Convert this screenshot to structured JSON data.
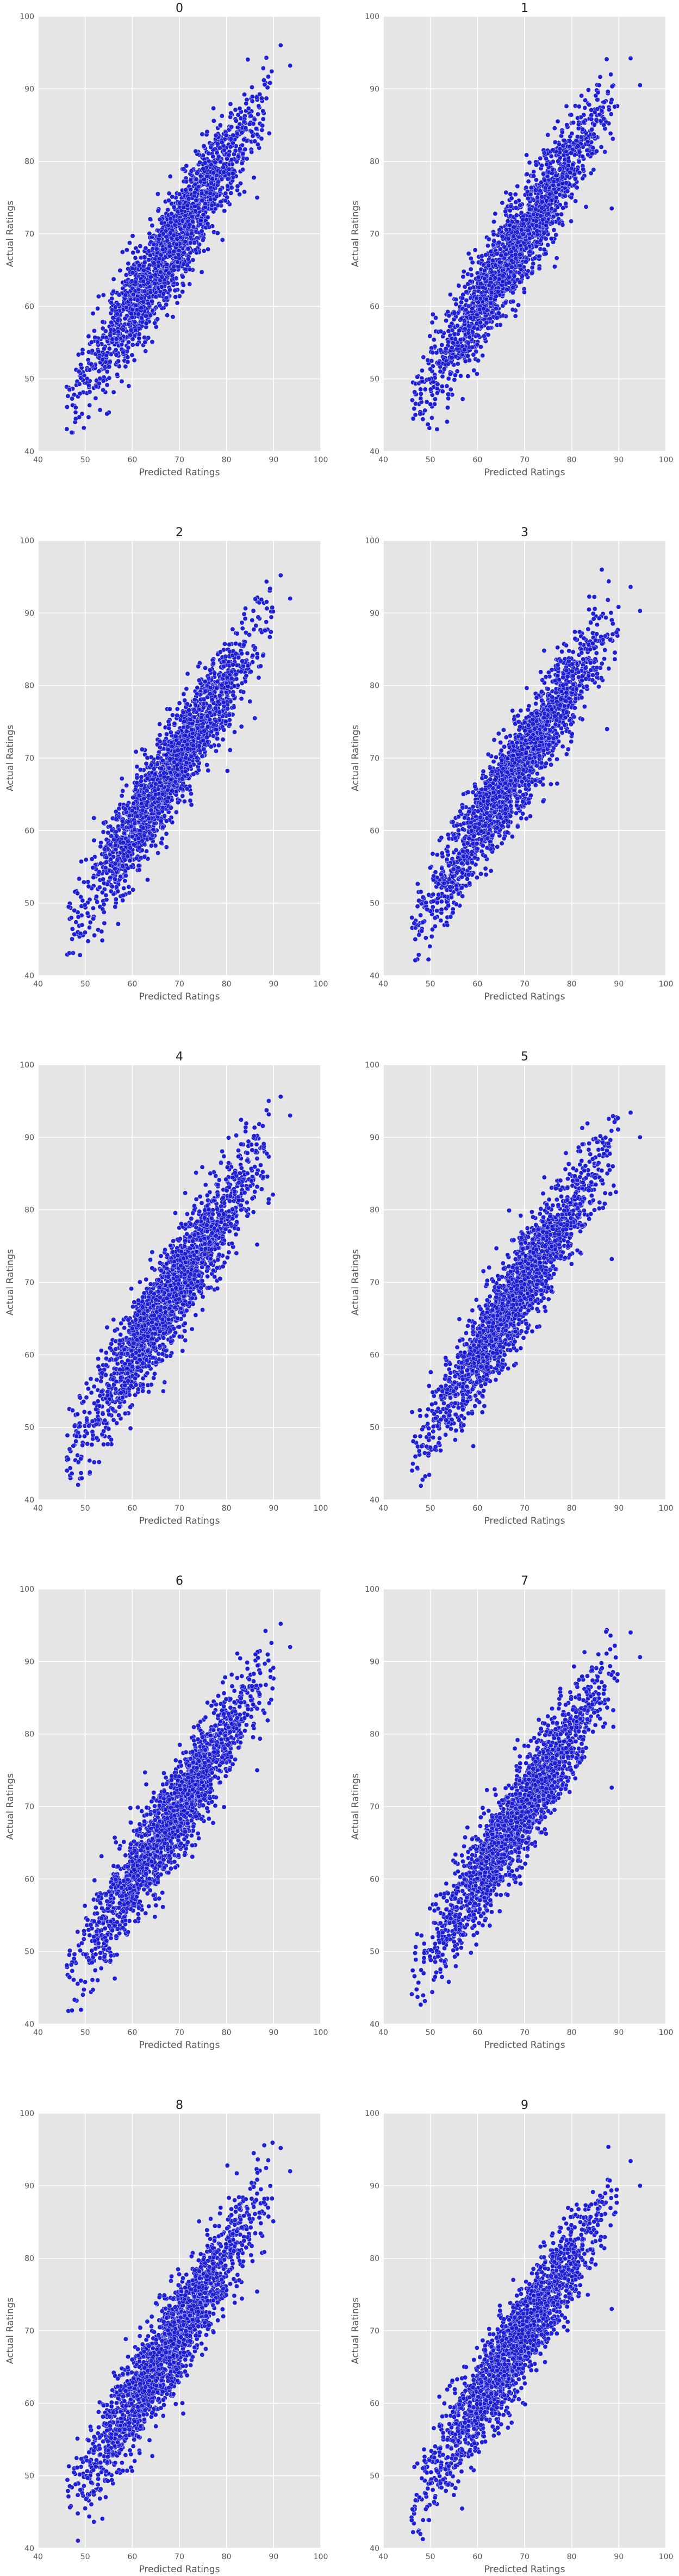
{
  "chart_data": [
    {
      "type": "scatter",
      "title": "0",
      "xlabel": "Predicted Ratings",
      "ylabel": "Actual Ratings",
      "xlim": [
        40,
        100
      ],
      "ylim": [
        40,
        100
      ],
      "xticks": [
        "40",
        "50",
        "60",
        "70",
        "80",
        "90",
        "100"
      ],
      "yticks": [
        "40",
        "50",
        "60",
        "70",
        "80",
        "90",
        "100"
      ],
      "grid": true,
      "color": "#1f1fd6",
      "seed": 11,
      "n_points": 2000,
      "slope": 1.0,
      "intercept": 0,
      "noise_sd": 3.4,
      "x_range": [
        46,
        90
      ],
      "extra_points": [
        [
          91.5,
          96.0
        ],
        [
          93.5,
          93.2
        ],
        [
          86.5,
          75.0
        ],
        [
          48,
          44.5
        ]
      ]
    },
    {
      "type": "scatter",
      "title": "1",
      "xlabel": "Predicted Ratings",
      "ylabel": "Actual Ratings",
      "xlim": [
        40,
        100
      ],
      "ylim": [
        40,
        100
      ],
      "xticks": [
        "40",
        "50",
        "60",
        "70",
        "80",
        "90",
        "100"
      ],
      "yticks": [
        "40",
        "50",
        "60",
        "70",
        "80",
        "90",
        "100"
      ],
      "grid": true,
      "color": "#1f1fd6",
      "seed": 23,
      "n_points": 2000,
      "slope": 1.0,
      "intercept": 0,
      "noise_sd": 3.2,
      "x_range": [
        46,
        90
      ],
      "extra_points": [
        [
          92.5,
          94.2
        ],
        [
          94.5,
          90.5
        ],
        [
          88.5,
          73.5
        ],
        [
          50,
          46.5
        ]
      ]
    },
    {
      "type": "scatter",
      "title": "2",
      "xlabel": "Predicted Ratings",
      "ylabel": "Actual Ratings",
      "xlim": [
        40,
        100
      ],
      "ylim": [
        40,
        100
      ],
      "xticks": [
        "40",
        "50",
        "60",
        "70",
        "80",
        "90",
        "100"
      ],
      "yticks": [
        "40",
        "50",
        "60",
        "70",
        "80",
        "90",
        "100"
      ],
      "grid": true,
      "color": "#1f1fd6",
      "seed": 37,
      "n_points": 2000,
      "slope": 1.0,
      "intercept": 0,
      "noise_sd": 3.3,
      "x_range": [
        46,
        90
      ],
      "extra_points": [
        [
          91.5,
          95.2
        ],
        [
          93.5,
          92.0
        ],
        [
          86,
          75.5
        ],
        [
          49,
          45.8
        ]
      ]
    },
    {
      "type": "scatter",
      "title": "3",
      "xlabel": "Predicted Ratings",
      "ylabel": "Actual Ratings",
      "xlim": [
        40,
        100
      ],
      "ylim": [
        40,
        100
      ],
      "xticks": [
        "40",
        "50",
        "60",
        "70",
        "80",
        "90",
        "100"
      ],
      "yticks": [
        "40",
        "50",
        "60",
        "70",
        "80",
        "90",
        "100"
      ],
      "grid": true,
      "color": "#1f1fd6",
      "seed": 41,
      "n_points": 2000,
      "slope": 1.0,
      "intercept": 0,
      "noise_sd": 3.2,
      "x_range": [
        46,
        90
      ],
      "extra_points": [
        [
          92.5,
          93.6
        ],
        [
          94.5,
          90.3
        ],
        [
          87.5,
          74.0
        ],
        [
          51,
          46.8
        ]
      ]
    },
    {
      "type": "scatter",
      "title": "4",
      "xlabel": "Predicted Ratings",
      "ylabel": "Actual Ratings",
      "xlim": [
        40,
        100
      ],
      "ylim": [
        40,
        100
      ],
      "xticks": [
        "40",
        "50",
        "60",
        "70",
        "80",
        "90",
        "100"
      ],
      "yticks": [
        "40",
        "50",
        "60",
        "70",
        "80",
        "90",
        "100"
      ],
      "grid": true,
      "color": "#1f1fd6",
      "seed": 53,
      "n_points": 2000,
      "slope": 1.0,
      "intercept": 0,
      "noise_sd": 3.4,
      "x_range": [
        46,
        90
      ],
      "extra_points": [
        [
          91.5,
          95.6
        ],
        [
          93.5,
          93.0
        ],
        [
          86.5,
          75.2
        ],
        [
          51,
          43.8
        ]
      ]
    },
    {
      "type": "scatter",
      "title": "5",
      "xlabel": "Predicted Ratings",
      "ylabel": "Actual Ratings",
      "xlim": [
        40,
        100
      ],
      "ylim": [
        40,
        100
      ],
      "xticks": [
        "40",
        "50",
        "60",
        "70",
        "80",
        "90",
        "100"
      ],
      "yticks": [
        "40",
        "50",
        "60",
        "70",
        "80",
        "90",
        "100"
      ],
      "grid": true,
      "color": "#1f1fd6",
      "seed": 67,
      "n_points": 2000,
      "slope": 1.0,
      "intercept": 0,
      "noise_sd": 3.2,
      "x_range": [
        46,
        90
      ],
      "extra_points": [
        [
          92.5,
          93.4
        ],
        [
          94.5,
          90.0
        ],
        [
          88.5,
          73.2
        ],
        [
          50,
          47.2
        ]
      ]
    },
    {
      "type": "scatter",
      "title": "6",
      "xlabel": "Predicted Ratings",
      "ylabel": "Actual Ratings",
      "xlim": [
        40,
        100
      ],
      "ylim": [
        40,
        100
      ],
      "xticks": [
        "40",
        "50",
        "60",
        "70",
        "80",
        "90",
        "100"
      ],
      "yticks": [
        "40",
        "50",
        "60",
        "70",
        "80",
        "90",
        "100"
      ],
      "grid": true,
      "color": "#1f1fd6",
      "seed": 79,
      "n_points": 2000,
      "slope": 1.0,
      "intercept": 0,
      "noise_sd": 3.3,
      "x_range": [
        46,
        90
      ],
      "extra_points": [
        [
          91.5,
          95.2
        ],
        [
          93.5,
          92.0
        ],
        [
          86.5,
          75.0
        ],
        [
          50,
          45.8
        ]
      ]
    },
    {
      "type": "scatter",
      "title": "7",
      "xlabel": "Predicted Ratings",
      "ylabel": "Actual Ratings",
      "xlim": [
        40,
        100
      ],
      "ylim": [
        40,
        100
      ],
      "xticks": [
        "40",
        "50",
        "60",
        "70",
        "80",
        "90",
        "100"
      ],
      "yticks": [
        "40",
        "50",
        "60",
        "70",
        "80",
        "90",
        "100"
      ],
      "grid": true,
      "color": "#1f1fd6",
      "seed": 83,
      "n_points": 2000,
      "slope": 1.0,
      "intercept": 0,
      "noise_sd": 3.2,
      "x_range": [
        46,
        90
      ],
      "extra_points": [
        [
          92.5,
          94.0
        ],
        [
          94.5,
          90.6
        ],
        [
          88.5,
          72.6
        ],
        [
          51,
          46.5
        ]
      ]
    },
    {
      "type": "scatter",
      "title": "8",
      "xlabel": "Predicted Ratings",
      "ylabel": "Actual Ratings",
      "xlim": [
        40,
        100
      ],
      "ylim": [
        40,
        100
      ],
      "xticks": [
        "40",
        "50",
        "60",
        "70",
        "80",
        "90",
        "100"
      ],
      "yticks": [
        "40",
        "50",
        "60",
        "70",
        "80",
        "90",
        "100"
      ],
      "grid": true,
      "color": "#1f1fd6",
      "seed": 97,
      "n_points": 2000,
      "slope": 1.0,
      "intercept": 0,
      "noise_sd": 3.3,
      "x_range": [
        46,
        90
      ],
      "extra_points": [
        [
          91.5,
          95.2
        ],
        [
          93.5,
          92.0
        ],
        [
          86.5,
          75.4
        ],
        [
          50,
          45.5
        ]
      ]
    },
    {
      "type": "scatter",
      "title": "9",
      "xlabel": "Predicted Ratings",
      "ylabel": "Actual Ratings",
      "xlim": [
        40,
        100
      ],
      "ylim": [
        40,
        100
      ],
      "xticks": [
        "40",
        "50",
        "60",
        "70",
        "80",
        "90",
        "100"
      ],
      "yticks": [
        "40",
        "50",
        "60",
        "70",
        "80",
        "90",
        "100"
      ],
      "grid": true,
      "color": "#1f1fd6",
      "seed": 101,
      "n_points": 2000,
      "slope": 1.0,
      "intercept": 0,
      "noise_sd": 3.2,
      "x_range": [
        46,
        90
      ],
      "extra_points": [
        [
          92.5,
          93.4
        ],
        [
          94.5,
          90.0
        ],
        [
          88.5,
          73.0
        ],
        [
          51,
          47.0
        ]
      ]
    }
  ]
}
